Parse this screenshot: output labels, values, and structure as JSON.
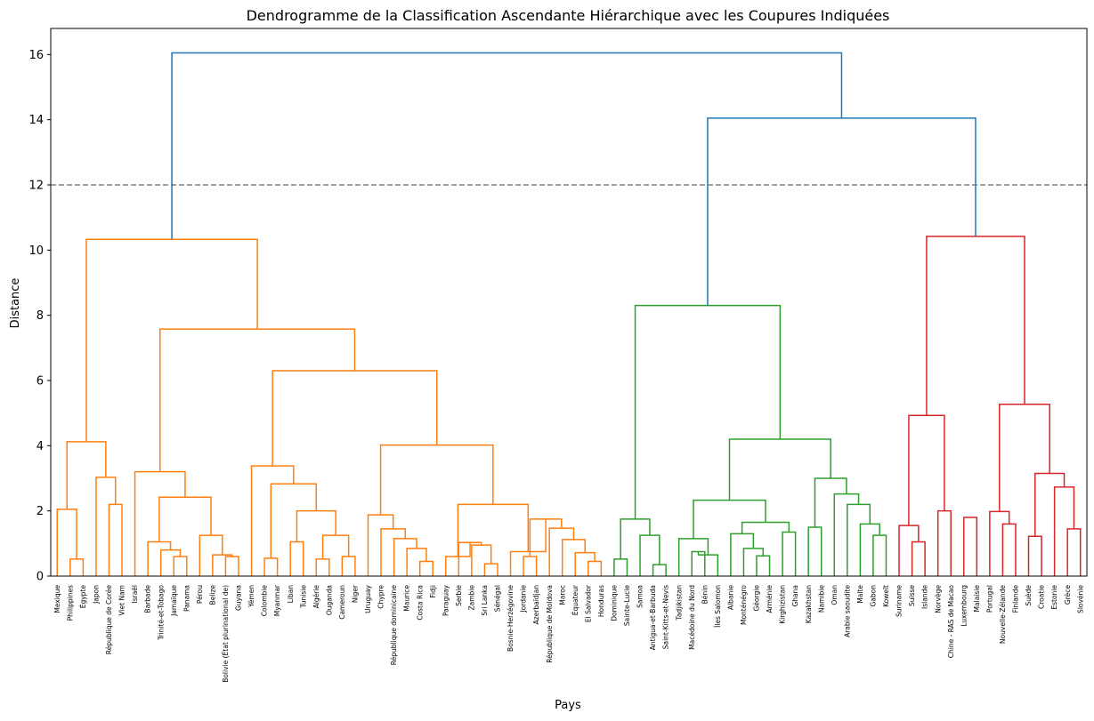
{
  "chart_data": {
    "type": "dendrogram",
    "title": "Dendrogramme de la Classification Ascendante Hiérarchique avec les Coupures Indiquées",
    "xlabel": "Pays",
    "ylabel": "Distance",
    "ylim": [
      0,
      16.8
    ],
    "yticks": [
      0,
      2,
      4,
      6,
      8,
      10,
      12,
      14,
      16
    ],
    "cut_height": 12,
    "grid": false,
    "colors": {
      "orange": "#ff7f0e",
      "green": "#2ca02c",
      "red": "#d62728",
      "blue": "#1f77b4",
      "cut": "#808080"
    },
    "leaves": [
      "Mexique",
      "Philippines",
      "Égypte",
      "Japon",
      "République de Corée",
      "Viet Nam",
      "Israël",
      "Barbade",
      "Trinité-et-Tobago",
      "Jamaïque",
      "Panama",
      "Pérou",
      "Belize",
      "Bolivie (État plurinational de)",
      "Guyana",
      "Yémen",
      "Colombie",
      "Myanmar",
      "Liban",
      "Tunisie",
      "Algérie",
      "Ouganda",
      "Cameroun",
      "Niger",
      "Uruguay",
      "Chypre",
      "République dominicaine",
      "Maurice",
      "Costa Rica",
      "Fidji",
      "Paraguay",
      "Serbie",
      "Zambie",
      "Sri Lanka",
      "Sénégal",
      "Bosnie-Herzégovine",
      "Jordanie",
      "Azerbaïdjan",
      "République de Moldova",
      "Maroc",
      "Équateur",
      "El Salvador",
      "Honduras",
      "Dominique",
      "Sainte-Lucie",
      "Samoa",
      "Antigua-et-Barbuda",
      "Saint-Kitts-et-Nevis",
      "Tadjikistan",
      "Macédoine du Nord",
      "Bénin",
      "Îles Salomon",
      "Albanie",
      "Monténégro",
      "Géorgie",
      "Arménie",
      "Kirghizistan",
      "Ghana",
      "Kazakhstan",
      "Namibie",
      "Oman",
      "Arabie saoudite",
      "Malte",
      "Gabon",
      "Koweït",
      "Suriname",
      "Suisse",
      "Islande",
      "Norvège",
      "Chine - RAS de Macao",
      "Luxembourg",
      "Malaisie",
      "Portugal",
      "Nouvelle-Zélande",
      "Finlande",
      "Suède",
      "Croatie",
      "Estonie",
      "Grèce",
      "Slovénie"
    ],
    "merges": [
      {
        "a": 1,
        "b": 2,
        "h": 0.52,
        "c": "orange"
      },
      {
        "a": "L0",
        "b": 0,
        "h": 2.05,
        "c": "orange"
      },
      {
        "a": 4,
        "b": 5,
        "h": 2.2,
        "c": "orange"
      },
      {
        "a": 3,
        "b": "L2",
        "h": 3.03,
        "c": "orange"
      },
      {
        "a": "L1",
        "b": "L3",
        "h": 4.12,
        "c": "orange"
      },
      {
        "a": 9,
        "b": 10,
        "h": 0.6,
        "c": "orange"
      },
      {
        "a": 8,
        "b": "L5",
        "h": 0.8,
        "c": "orange"
      },
      {
        "a": 7,
        "b": "L6",
        "h": 1.05,
        "c": "orange"
      },
      {
        "a": 13,
        "b": 14,
        "h": 0.6,
        "c": "orange"
      },
      {
        "a": 12,
        "b": "L8",
        "h": 0.65,
        "c": "orange"
      },
      {
        "a": 11,
        "b": "L9",
        "h": 1.25,
        "c": "orange"
      },
      {
        "a": "L7",
        "b": "L10",
        "h": 2.42,
        "c": "orange"
      },
      {
        "a": 6,
        "b": "L11",
        "h": 3.2,
        "c": "orange"
      },
      {
        "a": 16,
        "b": 17,
        "h": 0.55,
        "c": "orange"
      },
      {
        "a": 18,
        "b": 19,
        "h": 1.05,
        "c": "orange"
      },
      {
        "a": 20,
        "b": 21,
        "h": 0.52,
        "c": "orange"
      },
      {
        "a": 22,
        "b": 23,
        "h": 0.6,
        "c": "orange"
      },
      {
        "a": "L15",
        "b": "L16",
        "h": 1.25,
        "c": "orange"
      },
      {
        "a": "L14",
        "b": "L17",
        "h": 2.0,
        "c": "orange"
      },
      {
        "a": "L13",
        "b": "L18",
        "h": 2.83,
        "c": "orange"
      },
      {
        "a": 15,
        "b": "L19",
        "h": 3.38,
        "c": "orange"
      },
      {
        "a": 28,
        "b": 29,
        "h": 0.45,
        "c": "orange"
      },
      {
        "a": 27,
        "b": "L21",
        "h": 0.85,
        "c": "orange"
      },
      {
        "a": 26,
        "b": "L22",
        "h": 1.15,
        "c": "orange"
      },
      {
        "a": 25,
        "b": "L23",
        "h": 1.45,
        "c": "orange"
      },
      {
        "a": 24,
        "b": "L24",
        "h": 1.88,
        "c": "orange"
      },
      {
        "a": 33,
        "b": 34,
        "h": 0.38,
        "c": "orange"
      },
      {
        "a": 32,
        "b": "L26",
        "h": 0.95,
        "c": "orange"
      },
      {
        "a": 31,
        "b": "L27",
        "h": 1.03,
        "c": "orange"
      },
      {
        "a": 30,
        "b": "L28",
        "h": 0.6,
        "c": "orange"
      },
      {
        "a": 36,
        "b": 37,
        "h": 0.6,
        "c": "orange"
      },
      {
        "a": 41,
        "b": 42,
        "h": 0.45,
        "c": "orange"
      },
      {
        "a": 40,
        "b": "L31",
        "h": 0.72,
        "c": "orange"
      },
      {
        "a": 39,
        "b": "L32",
        "h": 1.12,
        "c": "orange"
      },
      {
        "a": 38,
        "b": "L33",
        "h": 1.47,
        "c": "orange"
      },
      {
        "a": "L30",
        "b": "L34",
        "h": 1.75,
        "c": "orange"
      },
      {
        "a": 35,
        "b": "L35",
        "h": 0.75,
        "c": "orange"
      },
      {
        "a": "L29",
        "b": "L36",
        "h": 2.2,
        "c": "orange"
      },
      {
        "a": "L25",
        "b": "L37",
        "h": 4.02,
        "c": "orange"
      },
      {
        "a": "L20",
        "b": "L38",
        "h": 6.3,
        "c": "orange"
      },
      {
        "a": "L12",
        "b": "L39",
        "h": 7.58,
        "c": "orange"
      },
      {
        "a": "L4",
        "b": "L40",
        "h": 10.33,
        "c": "orange"
      },
      {
        "a": 43,
        "b": 44,
        "h": 0.52,
        "c": "green"
      },
      {
        "a": 46,
        "b": 47,
        "h": 0.35,
        "c": "green"
      },
      {
        "a": 45,
        "b": "L43",
        "h": 1.25,
        "c": "green"
      },
      {
        "a": "L42",
        "b": "L44",
        "h": 1.75,
        "c": "green"
      },
      {
        "a": 49,
        "b": 50,
        "h": 0.75,
        "c": "green"
      },
      {
        "a": "L46",
        "b": 51,
        "h": 0.65,
        "c": "green"
      },
      {
        "a": 48,
        "b": "L47",
        "h": 1.15,
        "c": "green"
      },
      {
        "a": 54,
        "b": 55,
        "h": 0.62,
        "c": "green"
      },
      {
        "a": 53,
        "b": "L49",
        "h": 0.85,
        "c": "green"
      },
      {
        "a": 52,
        "b": "L50",
        "h": 1.3,
        "c": "green"
      },
      {
        "a": 56,
        "b": 57,
        "h": 1.35,
        "c": "green"
      },
      {
        "a": "L51",
        "b": "L52",
        "h": 1.65,
        "c": "green"
      },
      {
        "a": "L48",
        "b": "L53",
        "h": 2.33,
        "c": "green"
      },
      {
        "a": 58,
        "b": 59,
        "h": 1.5,
        "c": "green"
      },
      {
        "a": 63,
        "b": 64,
        "h": 1.25,
        "c": "green"
      },
      {
        "a": 62,
        "b": "L56",
        "h": 1.6,
        "c": "green"
      },
      {
        "a": 61,
        "b": "L57",
        "h": 2.2,
        "c": "green"
      },
      {
        "a": 60,
        "b": "L58",
        "h": 2.52,
        "c": "green"
      },
      {
        "a": "L55",
        "b": "L59",
        "h": 3.0,
        "c": "green"
      },
      {
        "a": "L54",
        "b": "L60",
        "h": 4.2,
        "c": "green"
      },
      {
        "a": "L45",
        "b": "L61",
        "h": 8.3,
        "c": "green"
      },
      {
        "a": 66,
        "b": 67,
        "h": 1.05,
        "c": "red"
      },
      {
        "a": 65,
        "b": "L63",
        "h": 1.55,
        "c": "red"
      },
      {
        "a": 68,
        "b": 69,
        "h": 2.0,
        "c": "red"
      },
      {
        "a": "L64",
        "b": "L65",
        "h": 4.93,
        "c": "red"
      },
      {
        "a": 70,
        "b": 71,
        "h": 1.8,
        "c": "red"
      },
      {
        "a": 73,
        "b": 74,
        "h": 1.6,
        "c": "red"
      },
      {
        "a": 72,
        "b": "L68",
        "h": 1.98,
        "c": "red"
      },
      {
        "a": 75,
        "b": 76,
        "h": 1.22,
        "c": "red"
      },
      {
        "a": 78,
        "b": 79,
        "h": 1.45,
        "c": "red"
      },
      {
        "a": 77,
        "b": "L71",
        "h": 2.73,
        "c": "red"
      },
      {
        "a": "L70",
        "b": "L72",
        "h": 3.15,
        "c": "red"
      },
      {
        "a": "L69",
        "b": "L73",
        "h": 5.27,
        "c": "red"
      },
      {
        "a": "L66",
        "b": "L74",
        "h": 10.42,
        "c": "red"
      },
      {
        "a": "L62",
        "b": "L75",
        "h": 14.05,
        "c": "blue"
      },
      {
        "a": "L41",
        "b": "L76",
        "h": 16.05,
        "c": "blue"
      }
    ]
  }
}
